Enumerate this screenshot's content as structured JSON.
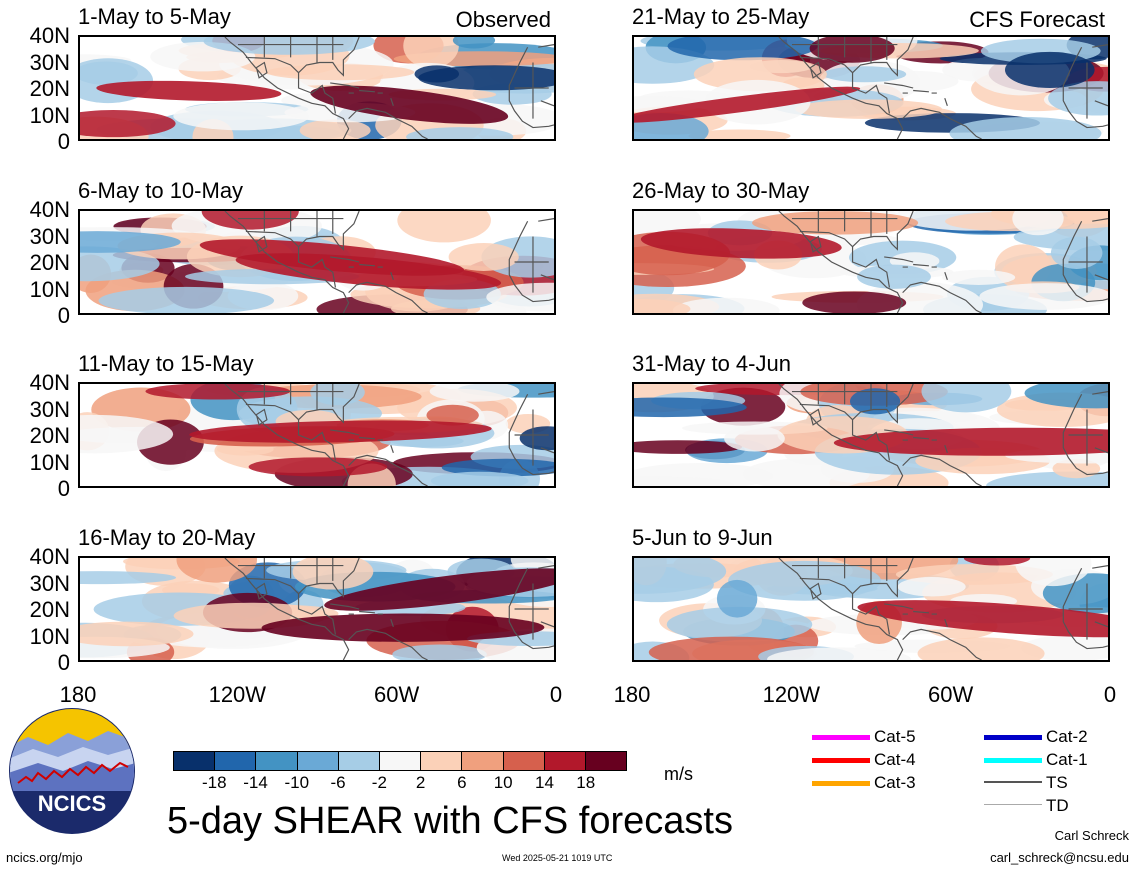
{
  "main_title": "5-day SHEAR with CFS forecasts",
  "observed_label": "Observed",
  "forecast_label": "CFS Forecast",
  "observed_panels": [
    "1-May to 5-May",
    "6-May to 10-May",
    "11-May to 15-May",
    "16-May to 20-May"
  ],
  "forecast_panels": [
    "21-May to 25-May",
    "26-May to 30-May",
    "31-May to 4-Jun",
    "5-Jun to 9-Jun"
  ],
  "lat_labels": [
    "40N",
    "30N",
    "20N",
    "10N",
    "0"
  ],
  "lon_labels": [
    "180",
    "120W",
    "60W",
    "0"
  ],
  "colorbar": {
    "units": "m/s",
    "ticks": [
      "-18",
      "-14",
      "-10",
      "-6",
      "-2",
      "2",
      "6",
      "10",
      "14",
      "18"
    ],
    "colors": [
      "#08306b",
      "#2166ac",
      "#4393c3",
      "#6aa9d6",
      "#a6cde6",
      "#f7f7f7",
      "#fbd1b8",
      "#f0a07e",
      "#d6604d",
      "#b2182b",
      "#67001f"
    ]
  },
  "storm_legend": [
    {
      "label": "Cat-5",
      "color": "#ff00ff"
    },
    {
      "label": "Cat-4",
      "color": "#ff0000"
    },
    {
      "label": "Cat-3",
      "color": "#ffa500"
    },
    {
      "label": "Cat-2",
      "color": "#0000c8"
    },
    {
      "label": "Cat-1",
      "color": "#00ffff"
    },
    {
      "label": "TS",
      "color": "#555555"
    },
    {
      "label": "TD",
      "color": "#aaaaaa"
    }
  ],
  "footer": {
    "site": "ncics.org/mjo",
    "timestamp": "Wed 2025-05-21 1019 UTC",
    "author": "Carl Schreck",
    "email": "carl_schreck@ncsu.edu",
    "logo_text": "NCICS"
  }
}
